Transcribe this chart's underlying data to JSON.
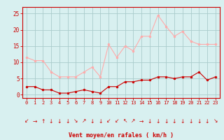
{
  "hours": [
    0,
    1,
    2,
    3,
    4,
    5,
    6,
    7,
    8,
    9,
    10,
    11,
    12,
    13,
    14,
    15,
    16,
    17,
    18,
    19,
    20,
    21,
    22,
    23
  ],
  "wind_avg": [
    2.5,
    2.5,
    1.5,
    1.5,
    0.5,
    0.5,
    1.0,
    1.5,
    1.0,
    0.5,
    2.5,
    2.5,
    4.0,
    4.0,
    4.5,
    4.5,
    5.5,
    5.5,
    5.0,
    5.5,
    5.5,
    7.0,
    4.5,
    5.5
  ],
  "wind_gust": [
    11.5,
    10.5,
    10.5,
    7.0,
    5.5,
    5.5,
    5.5,
    7.0,
    8.5,
    5.5,
    15.5,
    11.5,
    15.0,
    13.5,
    18.0,
    18.0,
    24.5,
    21.0,
    18.0,
    19.5,
    16.5,
    15.5,
    15.5,
    15.5
  ],
  "avg_color": "#cc0000",
  "gust_color": "#ffaaaa",
  "bg_color": "#d8f0f0",
  "grid_color": "#aacccc",
  "xlabel": "Vent moyen/en rafales ( km/h )",
  "yticks": [
    0,
    5,
    10,
    15,
    20,
    25
  ],
  "ylim": [
    -1,
    27
  ],
  "xlim": [
    -0.5,
    23.5
  ],
  "arrow_symbols": [
    "↙",
    "→",
    "↑",
    "↓",
    "↓",
    "↓",
    "↘",
    "↗",
    "↓",
    "↓",
    "↙",
    "↙",
    "↖",
    "↗",
    "→",
    "↓",
    "↓",
    "↓",
    "↓",
    "↓",
    "↓",
    "↓",
    "↓",
    "↘"
  ]
}
